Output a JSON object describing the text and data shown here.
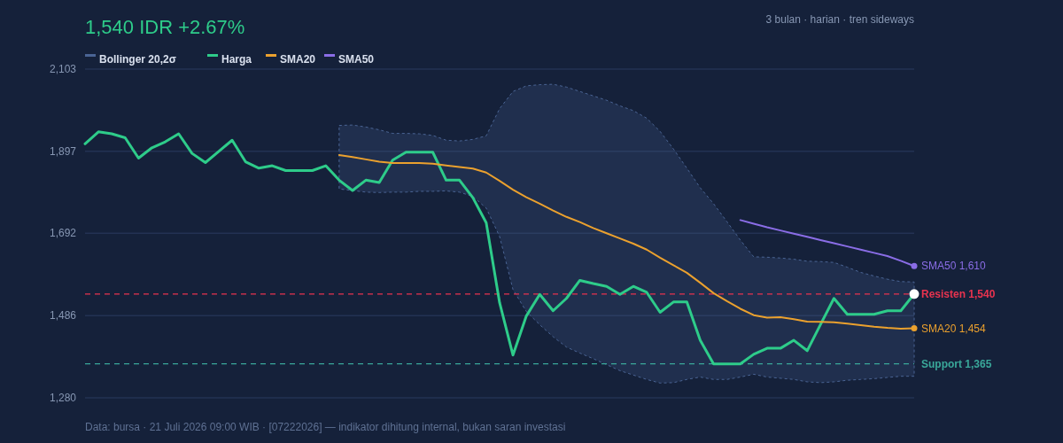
{
  "chart_data": {
    "type": "line",
    "subtitle": "1,540 IDR +2.67%",
    "annotations": [
      "3 bulan · harian · tren sideways",
      "Data: bursa · 21 Juli 2026 09:00 WIB · [07222026] — indikator dihitung internal, bukan saran investasi",
      "SMA50 1,610",
      "SMA20 1,454"
    ],
    "categories": [
      null,
      null,
      null,
      null,
      null,
      null,
      null,
      null,
      null,
      null,
      null,
      null,
      null,
      null,
      null,
      null,
      null,
      null,
      null,
      null,
      null,
      null,
      null,
      null,
      null,
      null,
      null,
      null,
      null,
      null,
      null,
      null,
      null,
      null,
      null,
      null,
      null,
      null,
      null,
      null,
      null,
      null,
      null,
      null,
      null,
      null,
      null,
      null,
      null,
      null,
      null,
      null,
      null,
      null,
      null,
      null,
      null,
      null,
      null,
      null,
      null,
      null,
      null
    ],
    "series": [
      {
        "name": "Bollinger 20,2σ",
        "type": "area",
        "color": "#4a6494",
        "values": [
          null,
          null,
          null,
          null,
          null,
          null,
          null,
          null,
          null,
          null,
          null,
          null,
          null,
          null,
          null,
          null,
          null,
          null,
          null,
          null,
          null,
          null,
          null,
          null,
          null,
          null,
          null,
          null,
          null,
          null,
          null,
          null,
          null,
          null,
          null,
          null,
          null,
          null,
          null,
          null,
          null,
          null,
          null,
          null,
          null,
          null,
          null,
          null,
          null,
          null,
          null,
          null,
          null,
          null,
          null,
          null,
          null,
          null,
          null,
          null,
          null,
          null,
          null
        ],
        "upper": [
          null,
          null,
          null,
          null,
          null,
          null,
          null,
          null,
          null,
          null,
          null,
          null,
          null,
          null,
          null,
          null,
          null,
          null,
          null,
          1962,
          1963,
          1958,
          1951,
          1942,
          1942,
          1941,
          1937,
          1925,
          1923,
          1927,
          1936,
          2004,
          2047,
          2061,
          2064,
          2065,
          2058,
          2047,
          2036,
          2025,
          2011,
          1999,
          1980,
          1947,
          1903,
          1855,
          1806,
          1766,
          1721,
          1675,
          1633,
          1632,
          1630,
          1627,
          1622,
          1621,
          1619,
          1607,
          1594,
          1585,
          1577,
          1571,
          1570
        ],
        "lower": [
          null,
          null,
          null,
          null,
          null,
          null,
          null,
          null,
          null,
          null,
          null,
          null,
          null,
          null,
          null,
          null,
          null,
          null,
          null,
          1803,
          1799,
          1795,
          1794,
          1795,
          1795,
          1797,
          1797,
          1798,
          1795,
          1784,
          1755,
          1684,
          1551,
          1496,
          1463,
          1433,
          1407,
          1392,
          1378,
          1363,
          1348,
          1337,
          1326,
          1317,
          1318,
          1326,
          1332,
          1326,
          1326,
          1332,
          1339,
          1332,
          1329,
          1326,
          1320,
          1318,
          1320,
          1324,
          1326,
          1328,
          1331,
          1334,
          1334
        ]
      },
      {
        "name": "Harga",
        "color": "#2ecc8a",
        "values": [
          1916,
          1946,
          1941,
          1931,
          1880,
          1906,
          1921,
          1941,
          1892,
          1869,
          1897,
          1925,
          1871,
          1855,
          1861,
          1849,
          1849,
          1849,
          1861,
          1825,
          1799,
          1825,
          1819,
          1875,
          1895,
          1895,
          1895,
          1825,
          1825,
          1781,
          1718,
          1518,
          1387,
          1485,
          1539,
          1498,
          1529,
          1574,
          1566,
          1559,
          1539,
          1559,
          1544,
          1494,
          1520,
          1520,
          1424,
          1365,
          1365,
          1365,
          1389,
          1404,
          1404,
          1424,
          1398,
          1464,
          1529,
          1489,
          1489,
          1489,
          1498,
          1498,
          1540
        ]
      },
      {
        "name": "SMA20",
        "color": "#eba12e",
        "values": [
          null,
          null,
          null,
          null,
          null,
          null,
          null,
          null,
          null,
          null,
          null,
          null,
          null,
          null,
          null,
          null,
          null,
          null,
          null,
          1888,
          1883,
          1877,
          1871,
          1868,
          1868,
          1868,
          1866,
          1862,
          1858,
          1854,
          1844,
          1823,
          1801,
          1782,
          1766,
          1749,
          1733,
          1720,
          1705,
          1692,
          1679,
          1666,
          1651,
          1631,
          1612,
          1593,
          1568,
          1542,
          1522,
          1503,
          1487,
          1481,
          1482,
          1477,
          1471,
          1470,
          1469,
          1466,
          1462,
          1458,
          1455,
          1453,
          1454
        ]
      },
      {
        "name": "SMA50",
        "color": "#8a6de6",
        "values": [
          null,
          null,
          null,
          null,
          null,
          null,
          null,
          null,
          null,
          null,
          null,
          null,
          null,
          null,
          null,
          null,
          null,
          null,
          null,
          null,
          null,
          null,
          null,
          null,
          null,
          null,
          null,
          null,
          null,
          null,
          null,
          null,
          null,
          null,
          null,
          null,
          null,
          null,
          null,
          null,
          null,
          null,
          null,
          null,
          null,
          null,
          null,
          null,
          null,
          1725,
          1716,
          1707,
          1699,
          1691,
          1683,
          1675,
          1667,
          1659,
          1651,
          1643,
          1635,
          1623,
          1610
        ]
      }
    ],
    "ylim": [
      1280,
      2103
    ],
    "yticks": [
      {
        "value": 1280,
        "label": "1,280"
      },
      {
        "value": 1486,
        "label": "1,486"
      },
      {
        "value": 1692,
        "label": "1,692"
      },
      {
        "value": 1897,
        "label": "1,897"
      },
      {
        "value": 2103,
        "label": "2,103"
      }
    ],
    "grid": "y",
    "legend": "top left",
    "line_style": "solid",
    "marker": "none",
    "ref_lines": [
      {
        "axis": "y",
        "value": 1540,
        "label": "Resisten 1,540",
        "color": "#e8334f",
        "line_style": "dashed"
      },
      {
        "axis": "y",
        "value": 1365,
        "label": "Support 1,365",
        "color": "#3aa89a",
        "line_style": "dashed"
      }
    ]
  }
}
